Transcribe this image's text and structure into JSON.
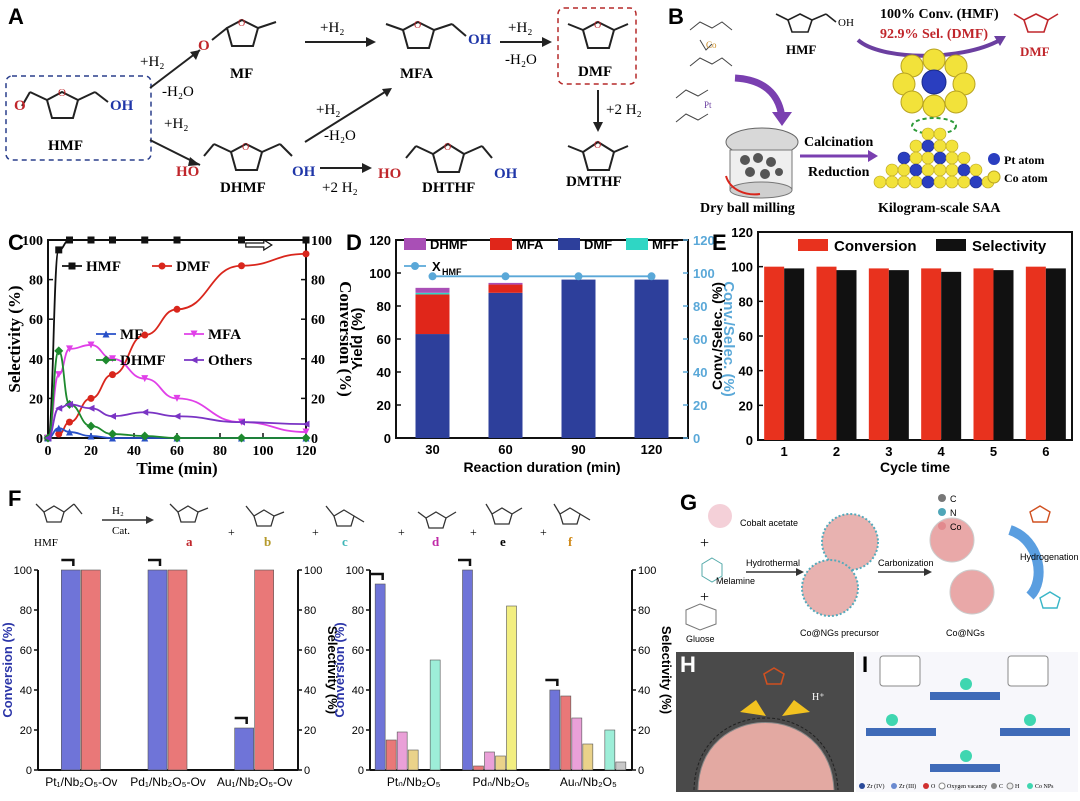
{
  "panels": {
    "A": {
      "letter": "A",
      "compounds": {
        "hmf": "HMF",
        "mf": "MF",
        "mfa": "MFA",
        "dmf": "DMF",
        "dhmf": "DHMF",
        "dhthf": "DHTHF",
        "dmthf": "DMTHF"
      },
      "conditions": {
        "h2": "+H₂",
        "h2o": "-H₂O",
        "h2x2": "+2 H₂",
        "oh": "OH",
        "ho": "HO",
        "o": "O"
      }
    },
    "B": {
      "letter": "B",
      "hmf_label": "HMF",
      "dmf_label": "DMF",
      "conv_text": "100% Conv. (HMF)",
      "sel_text": "92.9% Sel. (DMF)",
      "calcination": "Calcination",
      "reduction": "Reduction",
      "dry_ball": "Dry ball milling",
      "kg_saa": "Kilogram-scale SAA",
      "pt_atom": "Pt atom",
      "co_atom": "Co atom",
      "co_sym": "Co",
      "pt_sym": "Pt"
    },
    "C": {
      "letter": "C"
    },
    "D": {
      "letter": "D"
    },
    "E": {
      "letter": "E"
    },
    "F": {
      "letter": "F",
      "scheme": {
        "hmf": "HMF",
        "h2": "H₂",
        "cat": "Cat.",
        "a": "a",
        "b": "b",
        "c": "c",
        "d": "d",
        "e": "e",
        "f": "f",
        "plus": "+"
      }
    },
    "G": {
      "letter": "G",
      "cobalt_acetate": "Cobalt acetate",
      "melamine": "Melamine",
      "glucose": "Gluose",
      "hydrothermal": "Hydrothermal",
      "carbonization": "Carbonization",
      "hydrogenation": "Hydrogenation",
      "precursor": "Co@NGs precursor",
      "product": "Co@NGs",
      "legend": [
        {
          "sym": "C",
          "color": "#777777"
        },
        {
          "sym": "N",
          "color": "#4fa6b8"
        },
        {
          "sym": "Co",
          "color": "#e28a8e"
        }
      ]
    },
    "H": {
      "letter": "H",
      "hplus": "H⁺"
    },
    "I": {
      "letter": "I",
      "legend": [
        "Zr (IV)",
        "Zr (III)",
        "O",
        "Oxygen vacancy",
        "C",
        "H",
        "Co NPs"
      ]
    }
  },
  "chart_data": [
    {
      "id": "C",
      "type": "line",
      "xlabel": "Time (min)",
      "ylabel": "Selectivity (%)",
      "y2label": "Conversion (%)",
      "xlim": [
        0,
        120
      ],
      "ylim": [
        0,
        100
      ],
      "y2lim": [
        0,
        100
      ],
      "xticks": [
        0,
        20,
        40,
        60,
        80,
        100,
        120
      ],
      "yticks": [
        0,
        20,
        40,
        60,
        80,
        100
      ],
      "y2ticks": [
        0,
        20,
        40,
        60,
        80,
        100
      ],
      "legend_placement": "inside",
      "series": [
        {
          "name": "HMF",
          "axis": "right",
          "color": "#111111",
          "marker": "square",
          "x": [
            0,
            5,
            10,
            20,
            30,
            45,
            60,
            90,
            120
          ],
          "y": [
            0,
            95,
            100,
            100,
            100,
            100,
            100,
            100,
            100
          ]
        },
        {
          "name": "DMF",
          "axis": "left",
          "color": "#d9261c",
          "marker": "circle",
          "x": [
            5,
            10,
            20,
            30,
            45,
            60,
            90,
            120
          ],
          "y": [
            2,
            8,
            20,
            32,
            52,
            65,
            87,
            93
          ]
        },
        {
          "name": "MF",
          "axis": "left",
          "color": "#2850c8",
          "marker": "triangle-up",
          "x": [
            0,
            5,
            10,
            20,
            30,
            45,
            60,
            90,
            120
          ],
          "y": [
            0,
            5,
            3,
            1,
            0,
            0,
            0,
            0,
            0
          ]
        },
        {
          "name": "MFA",
          "axis": "left",
          "color": "#e040e8",
          "marker": "triangle-down",
          "x": [
            0,
            5,
            10,
            20,
            30,
            45,
            60,
            90,
            120
          ],
          "y": [
            0,
            32,
            45,
            47,
            40,
            30,
            20,
            8,
            3
          ]
        },
        {
          "name": "DHMF",
          "axis": "left",
          "color": "#1e8a2e",
          "marker": "diamond",
          "x": [
            0,
            5,
            10,
            20,
            30,
            45,
            60,
            90,
            120
          ],
          "y": [
            0,
            44,
            17,
            6,
            2,
            1,
            0,
            0,
            0
          ]
        },
        {
          "name": "Others",
          "axis": "left",
          "color": "#7a34c4",
          "marker": "triangle-left",
          "x": [
            0,
            5,
            10,
            20,
            30,
            45,
            60,
            90,
            120
          ],
          "y": [
            0,
            15,
            17,
            15,
            11,
            13,
            11,
            8,
            7
          ]
        }
      ]
    },
    {
      "id": "D",
      "type": "bar",
      "xlabel": "Reaction duration (min)",
      "ylabel": "Yield (%)",
      "y2label": "Conv./Selec. (%)",
      "categories": [
        "30",
        "60",
        "90",
        "120"
      ],
      "ylim": [
        0,
        120
      ],
      "y2lim": [
        0,
        120
      ],
      "yticks": [
        0,
        20,
        40,
        60,
        80,
        100,
        120
      ],
      "y2ticks": [
        0,
        20,
        40,
        60,
        80,
        100,
        120
      ],
      "legend_placement": "top",
      "stack_order": [
        "DMF",
        "MFA",
        "MFF",
        "DHMF"
      ],
      "series": [
        {
          "name": "DHMF",
          "color": "#a94fb6",
          "values": [
            3,
            1,
            0,
            0
          ]
        },
        {
          "name": "MFA",
          "color": "#e0261a",
          "values": [
            24,
            5,
            0,
            0
          ]
        },
        {
          "name": "DMF",
          "color": "#2d3f9b",
          "values": [
            63,
            88,
            96,
            96
          ]
        },
        {
          "name": "MFF",
          "color": "#2fd6c4",
          "values": [
            1,
            0,
            0,
            0
          ]
        }
      ],
      "line": {
        "name": "X",
        "subscript": "HMF",
        "color": "#5aa8d8",
        "values": [
          98,
          98,
          98,
          98
        ]
      }
    },
    {
      "id": "E",
      "type": "bar",
      "xlabel": "Cycle time",
      "ylabel": "Conv./Selec. (%)",
      "categories": [
        "1",
        "2",
        "3",
        "4",
        "5",
        "6"
      ],
      "ylim": [
        0,
        120
      ],
      "yticks": [
        0,
        20,
        40,
        60,
        80,
        100,
        120
      ],
      "legend_placement": "top",
      "series": [
        {
          "name": "Conversion",
          "color": "#e8321e",
          "values": [
            100,
            100,
            99,
            99,
            99,
            100
          ]
        },
        {
          "name": "Selectivity",
          "color": "#111111",
          "values": [
            99,
            98,
            98,
            97,
            98,
            99
          ]
        }
      ]
    },
    {
      "id": "F1",
      "type": "bar",
      "ylabel": "Conversion (%)",
      "y2label": "Selectivity (%)",
      "categories": [
        "Pt₁/Nb₂O₅-Ov",
        "Pd₁/Nb₂O₅-Ov",
        "Au₁/Nb₂O₅-Ov"
      ],
      "ylim": [
        0,
        100
      ],
      "y2lim": [
        0,
        100
      ],
      "yticks": [
        0,
        20,
        40,
        60,
        80,
        100
      ],
      "series": [
        {
          "name": "Conversion",
          "color": "#6f74d8",
          "values": [
            100,
            100,
            21
          ]
        },
        {
          "name": "a",
          "color": "#e97878",
          "values": [
            100,
            100,
            100
          ]
        }
      ]
    },
    {
      "id": "F2",
      "type": "bar",
      "ylabel": "Conversion (%)",
      "y2label": "Selectivity (%)",
      "categories": [
        "Ptₙ/Nb₂O₅",
        "Pdₙ/Nb₂O₅",
        "Auₙ/Nb₂O₅"
      ],
      "ylim": [
        0,
        100
      ],
      "y2lim": [
        0,
        100
      ],
      "yticks": [
        0,
        20,
        40,
        60,
        80,
        100
      ],
      "series": [
        {
          "name": "Conversion",
          "color": "#6f74d8",
          "values": [
            93,
            100,
            40
          ]
        },
        {
          "name": "a",
          "color": "#e97878",
          "values": [
            15,
            2,
            37
          ]
        },
        {
          "name": "b",
          "color": "#eaa0d8",
          "values": [
            19,
            9,
            26
          ]
        },
        {
          "name": "c",
          "color": "#ead28a",
          "values": [
            10,
            7,
            13
          ]
        },
        {
          "name": "d",
          "color": "#f2ee80",
          "values": [
            0,
            82,
            0
          ]
        },
        {
          "name": "e",
          "color": "#9deed8",
          "values": [
            55,
            0,
            20
          ]
        },
        {
          "name": "f",
          "color": "#c8c8c8",
          "values": [
            0,
            0,
            4
          ]
        }
      ]
    }
  ]
}
